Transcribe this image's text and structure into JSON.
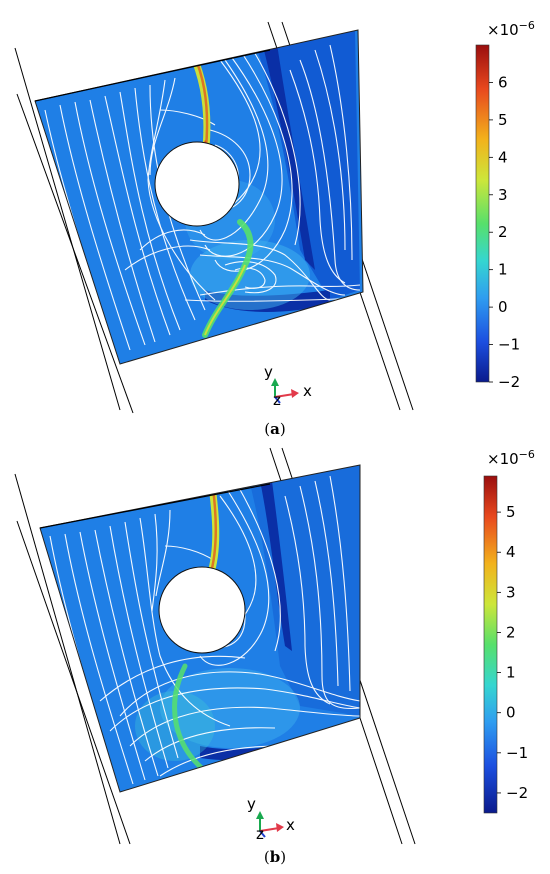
{
  "panels": [
    {
      "id": "a",
      "caption_label": "a",
      "colorbar": {
        "multiplier_base": "×10",
        "multiplier_exponent": "−6",
        "ticks": [
          "6",
          "5",
          "4",
          "3",
          "2",
          "1",
          "0",
          "−1",
          "−2"
        ],
        "range": [
          -2,
          7
        ]
      },
      "axes_triad": {
        "y": "y",
        "z": "z",
        "x": "x"
      }
    },
    {
      "id": "b",
      "caption_label": "b",
      "colorbar": {
        "multiplier_base": "×10",
        "multiplier_exponent": "−6",
        "ticks": [
          "5",
          "4",
          "3",
          "2",
          "1",
          "0",
          "−1",
          "−2"
        ],
        "range": [
          -2.5,
          5.9
        ]
      },
      "axes_triad": {
        "y": "y",
        "z": "z",
        "x": "x"
      }
    }
  ],
  "colors": {
    "field_base": "#1f7fe6",
    "field_dark": "#0b3fb8",
    "streamline": "#ffffff",
    "colormap": [
      "#0a1a8c",
      "#1c4fe0",
      "#2f9df0",
      "#35d6d0",
      "#57e06b",
      "#cde63a",
      "#f2b21c",
      "#e8481e",
      "#9a0e0e"
    ]
  }
}
